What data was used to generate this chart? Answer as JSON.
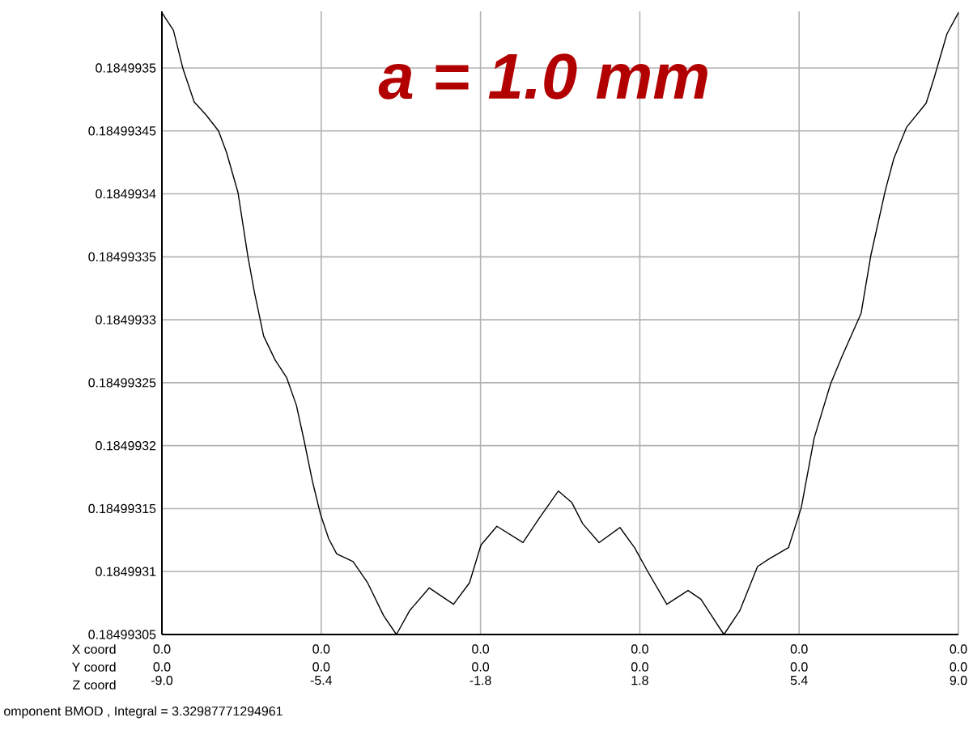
{
  "chart_data": {
    "type": "line",
    "title": "a = 1.0 mm",
    "x": [
      -9.0,
      -8.74,
      -8.52,
      -8.27,
      -8.01,
      -7.72,
      -7.54,
      -7.28,
      -7.06,
      -6.91,
      -6.7,
      -6.44,
      -6.18,
      -5.96,
      -5.78,
      -5.6,
      -5.42,
      -5.23,
      -5.05,
      -4.68,
      -4.35,
      -3.99,
      -3.7,
      -3.4,
      -2.96,
      -2.41,
      -2.05,
      -1.79,
      -1.43,
      -0.84,
      -0.48,
      -0.04,
      0.26,
      0.51,
      0.88,
      1.35,
      1.68,
      1.98,
      2.41,
      2.89,
      3.18,
      3.7,
      4.06,
      4.46,
      4.72,
      5.16,
      5.45,
      5.74,
      6.11,
      6.37,
      6.8,
      7.02,
      7.35,
      7.54,
      7.83,
      8.27,
      8.45,
      8.74,
      9.0
    ],
    "series": [
      {
        "color": "#000000",
        "values": [
          0.184993544,
          0.18499353,
          0.184993499,
          0.184993473,
          0.184993463,
          0.18499345,
          0.184993433,
          0.184993401,
          0.184993351,
          0.184993322,
          0.184993287,
          0.184993268,
          0.184993254,
          0.184993232,
          0.184993203,
          0.184993172,
          0.184993146,
          0.184993126,
          0.184993114,
          0.184993108,
          0.184993091,
          0.184993065,
          0.18499305,
          0.184993069,
          0.184993087,
          0.184993074,
          0.184993091,
          0.184993121,
          0.184993136,
          0.184993123,
          0.184993142,
          0.184993164,
          0.184993155,
          0.184993138,
          0.184993123,
          0.184993135,
          0.184993119,
          0.1849931,
          0.184993074,
          0.184993085,
          0.184993078,
          0.18499305,
          0.184993069,
          0.184993104,
          0.18499311,
          0.184993119,
          0.184993151,
          0.184993206,
          0.184993249,
          0.184993271,
          0.184993305,
          0.184993351,
          0.184993403,
          0.184993428,
          0.184993453,
          0.184993472,
          0.184993492,
          0.184993527,
          0.184993544
        ]
      }
    ],
    "xlim": [
      -9,
      9
    ],
    "xticks": [
      {
        "value": -9,
        "label": "-9.0"
      },
      {
        "value": -5.4,
        "label": "-5.4"
      },
      {
        "value": -1.8,
        "label": "-1.8"
      },
      {
        "value": 1.8,
        "label": "1.8"
      },
      {
        "value": 5.4,
        "label": "5.4"
      },
      {
        "value": 9,
        "label": "9.0"
      }
    ],
    "ylim": [
      0.18499305,
      0.184993545
    ],
    "yticks": [
      0.18499305,
      0.1849931,
      0.18499315,
      0.1849932,
      0.18499325,
      0.1849933,
      0.18499335,
      0.1849934,
      0.18499345,
      0.1849935
    ],
    "grid": true,
    "annotations": [
      "X coord",
      "Y coord",
      "Z coord",
      "omponent BMOD , Integral = 3.32987771294961",
      "0.0",
      "0.0",
      "0.0",
      "0.0",
      "0.0",
      "0.0",
      "0.0",
      "0.0",
      "0.0",
      "0.0",
      "0.0",
      "0.0"
    ]
  }
}
